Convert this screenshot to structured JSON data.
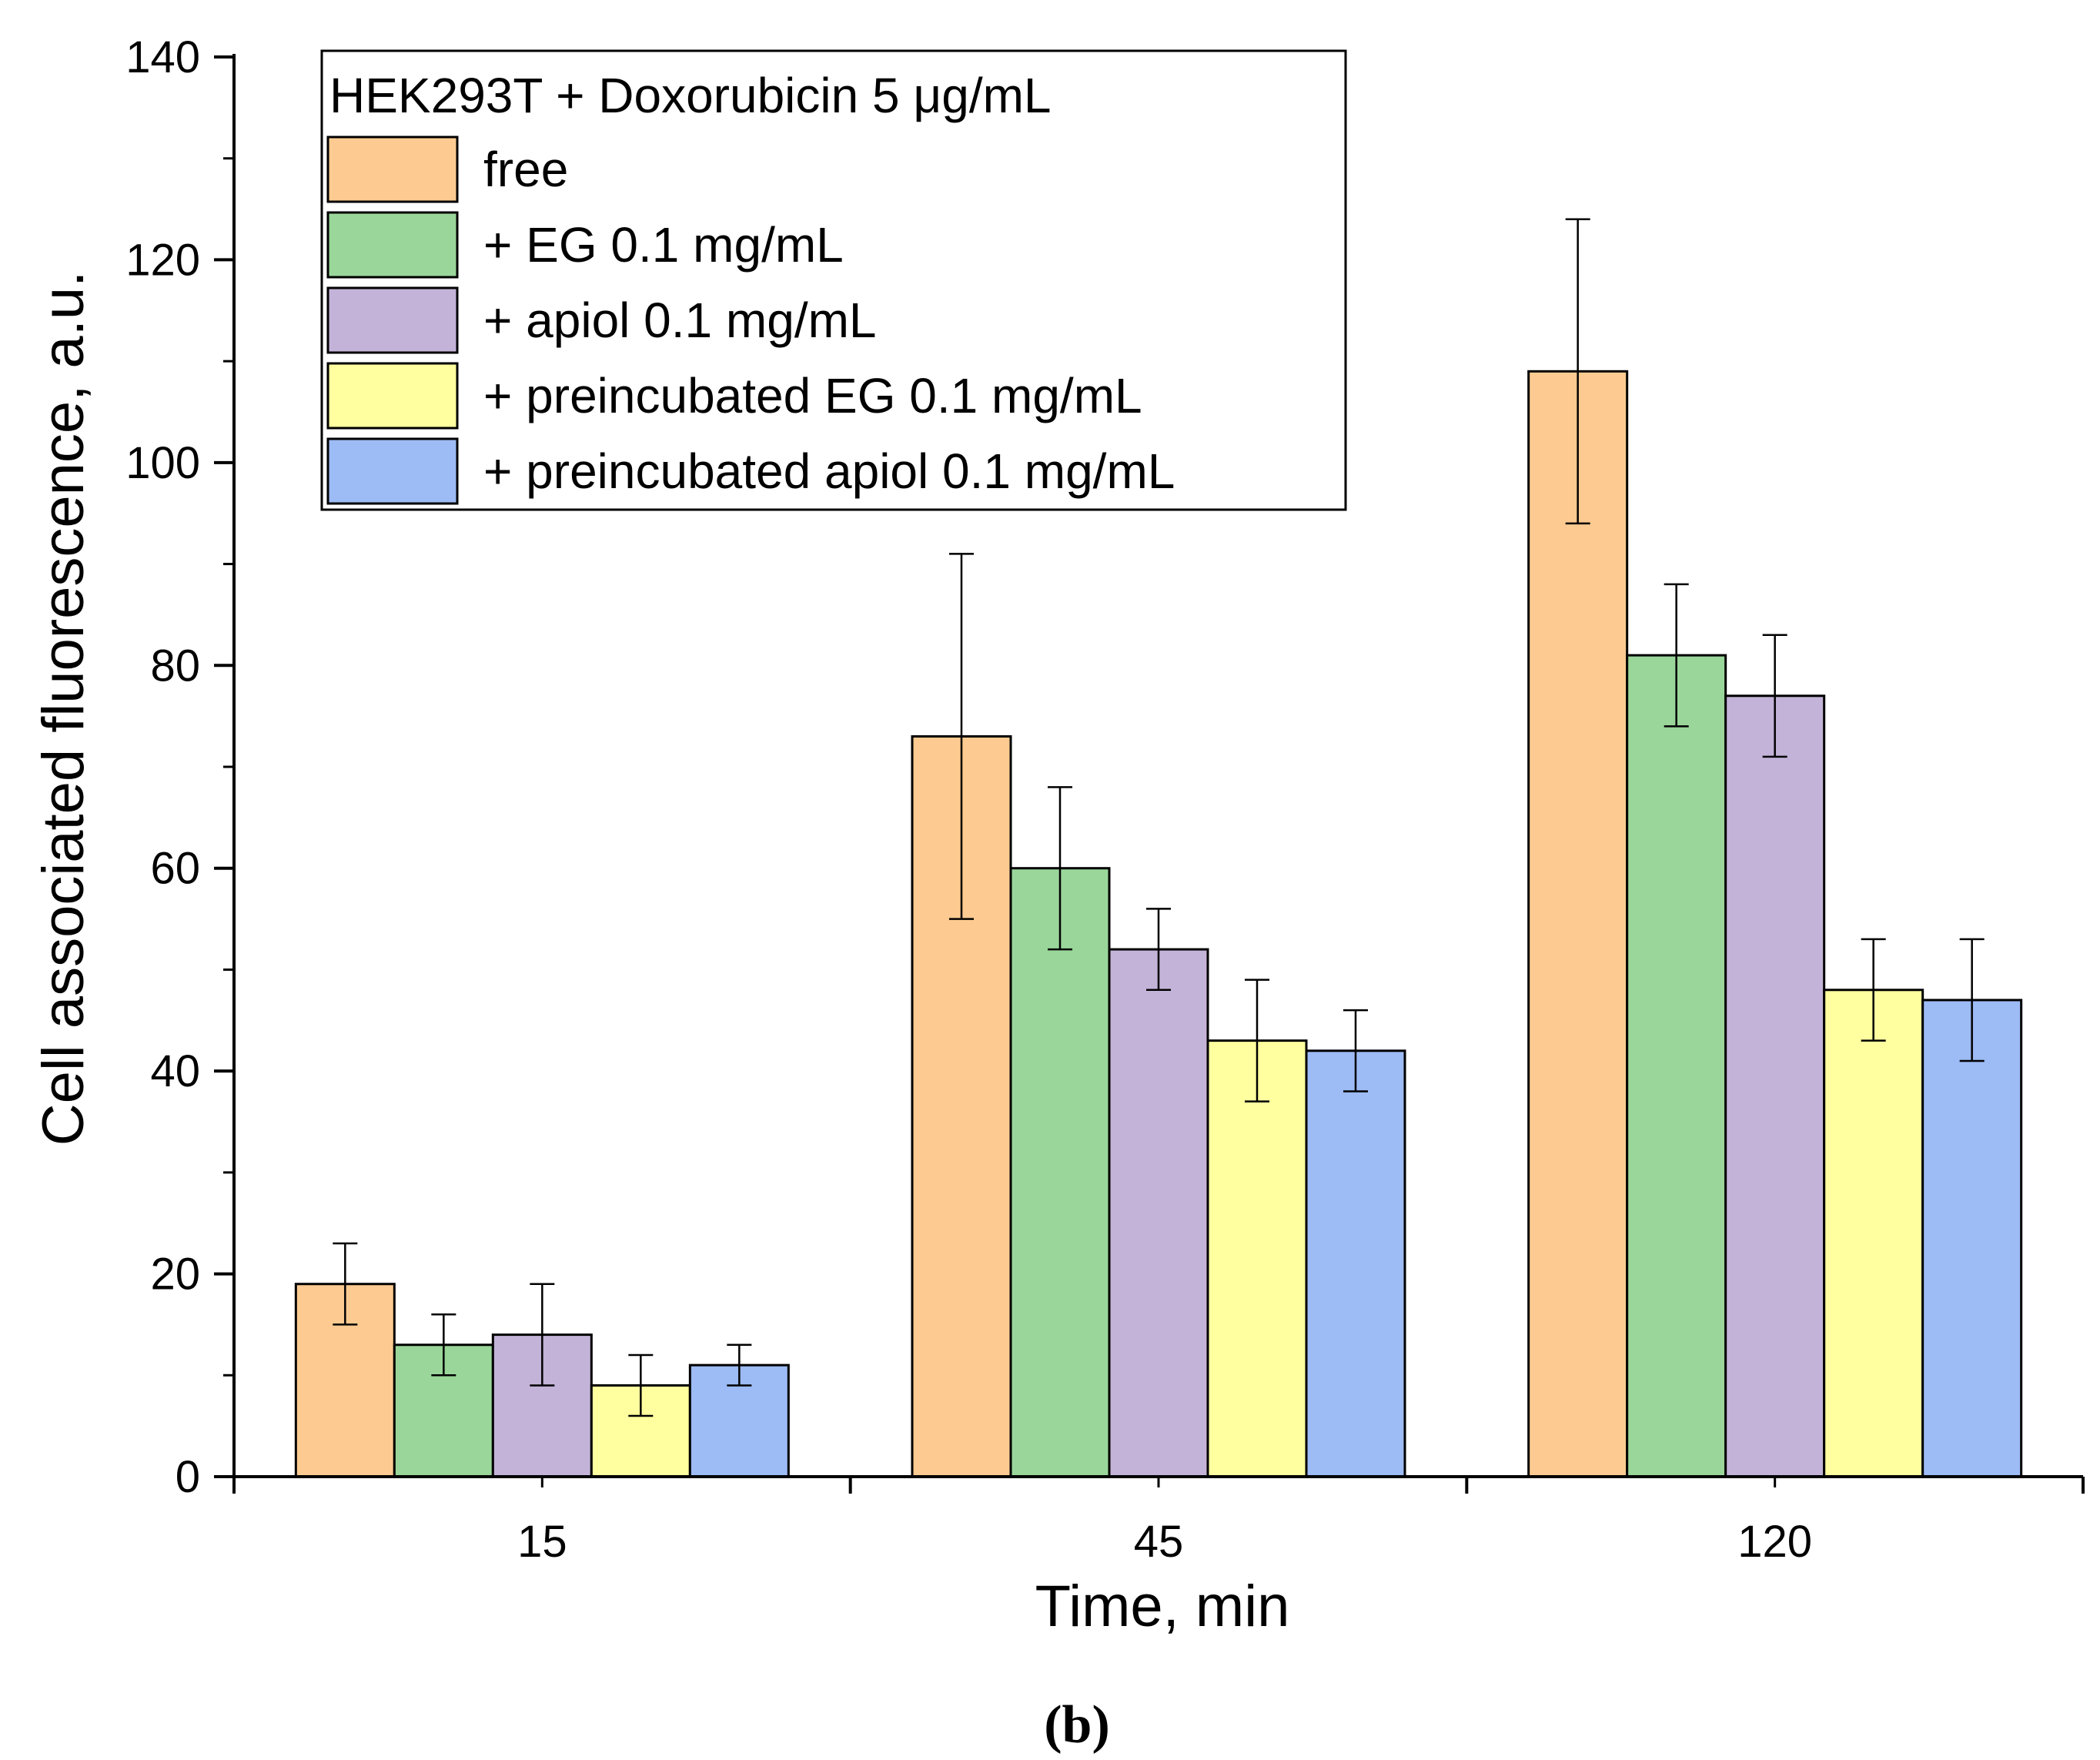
{
  "chart_data": {
    "type": "bar",
    "title": "HEK293T + Doxorubicin 5 μg/mL",
    "xlabel": "Time, min",
    "ylabel": "Cell associated fluorescence, a.u.",
    "categories": [
      "15",
      "45",
      "120"
    ],
    "ylim": [
      0,
      140
    ],
    "yticks": [
      "0",
      "20",
      "40",
      "60",
      "80",
      "100",
      "120",
      "140"
    ],
    "grid": false,
    "legend_position": "top-left",
    "panel_label": "(b)",
    "series": [
      {
        "name": "free",
        "color": "#FDCB91",
        "values": [
          19,
          73,
          109
        ],
        "errors": [
          4,
          18,
          15
        ]
      },
      {
        "name": "+ EG 0.1 mg/mL",
        "color": "#9AD69A",
        "values": [
          13,
          60,
          81
        ],
        "errors": [
          3,
          8,
          7
        ]
      },
      {
        "name": "+ apiol 0.1 mg/mL",
        "color": "#C4B3D8",
        "values": [
          14,
          52,
          77
        ],
        "errors": [
          5,
          4,
          6
        ]
      },
      {
        "name": "+ preincubated EG 0.1 mg/mL",
        "color": "#FFFF9F",
        "values": [
          9,
          43,
          48
        ],
        "errors": [
          3,
          6,
          5
        ]
      },
      {
        "name": "+ preincubated apiol 0.1 mg/mL",
        "color": "#9DBBF4",
        "values": [
          11,
          42,
          47
        ],
        "errors": [
          2,
          4,
          6
        ]
      }
    ]
  }
}
